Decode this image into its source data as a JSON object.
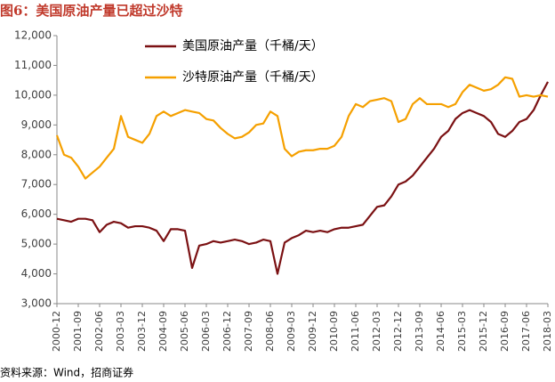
{
  "chart_data": {
    "type": "line",
    "title": "图6：美国原油产量已超过沙特",
    "source": "资料来源：Wind，招商证券",
    "categories": [
      "2000-12",
      null,
      null,
      "2001-09",
      null,
      null,
      "2002-06",
      null,
      null,
      "2003-03",
      null,
      null,
      "2003-12",
      null,
      null,
      "2004-09",
      null,
      null,
      "2005-06",
      null,
      null,
      "2006-03",
      null,
      null,
      "2006-12",
      null,
      null,
      "2007-09",
      null,
      null,
      "2008-06",
      null,
      null,
      "2009-03",
      null,
      null,
      "2009-12",
      null,
      null,
      "2010-09",
      null,
      null,
      "2011-06",
      null,
      null,
      "2012-03",
      null,
      null,
      "2012-12",
      null,
      null,
      "2013-09",
      null,
      null,
      "2014-06",
      null,
      null,
      "2015-03",
      null,
      null,
      "2015-12",
      null,
      null,
      "2016-09",
      null,
      null,
      "2017-06",
      null,
      null,
      "2018-03"
    ],
    "series": [
      {
        "name": "美国原油产量（千桶/天）",
        "color": "#7b1113",
        "values": [
          5850,
          5800,
          5750,
          5850,
          5850,
          5800,
          5400,
          5650,
          5750,
          5700,
          5550,
          5600,
          5600,
          5550,
          5450,
          5100,
          5500,
          5500,
          5450,
          4200,
          4950,
          5000,
          5100,
          5050,
          5100,
          5150,
          5100,
          5000,
          5050,
          5150,
          5100,
          4000,
          5050,
          5200,
          5300,
          5450,
          5400,
          5450,
          5400,
          5500,
          5550,
          5550,
          5600,
          5650,
          5950,
          6250,
          6300,
          6600,
          7000,
          7100,
          7300,
          7600,
          7900,
          8200,
          8600,
          8800,
          9200,
          9400,
          9500,
          9400,
          9300,
          9100,
          8700,
          8600,
          8800,
          9100,
          9200,
          9500,
          10000,
          10450
        ]
      },
      {
        "name": "沙特原油产量（千桶/天）",
        "color": "#f5a000",
        "values": [
          8650,
          8000,
          7900,
          7600,
          7200,
          7400,
          7600,
          7900,
          8200,
          9300,
          8600,
          8500,
          8400,
          8700,
          9300,
          9450,
          9300,
          9400,
          9500,
          9450,
          9400,
          9200,
          9150,
          8900,
          8700,
          8550,
          8600,
          8750,
          9000,
          9050,
          9450,
          9300,
          8200,
          7950,
          8100,
          8150,
          8150,
          8200,
          8200,
          8300,
          8600,
          9300,
          9700,
          9600,
          9800,
          9850,
          9900,
          9800,
          9100,
          9200,
          9700,
          9900,
          9700,
          9700,
          9700,
          9600,
          9700,
          10100,
          10350,
          10250,
          10150,
          10200,
          10350,
          10600,
          10550,
          9950,
          10000,
          9950,
          10000,
          9950
        ]
      }
    ],
    "ylim": [
      3000,
      12000
    ],
    "yticks": [
      {
        "value": 3000,
        "label": "3,000"
      },
      {
        "value": 4000,
        "label": "4,000"
      },
      {
        "value": 5000,
        "label": "5,000"
      },
      {
        "value": 6000,
        "label": "6,000"
      },
      {
        "value": 7000,
        "label": "7,000"
      },
      {
        "value": 8000,
        "label": "8,000"
      },
      {
        "value": 9000,
        "label": "9,000"
      },
      {
        "value": 10000,
        "label": "10,000"
      },
      {
        "value": 11000,
        "label": "11,000"
      },
      {
        "value": 12000,
        "label": "12,000"
      }
    ],
    "grid": false
  }
}
